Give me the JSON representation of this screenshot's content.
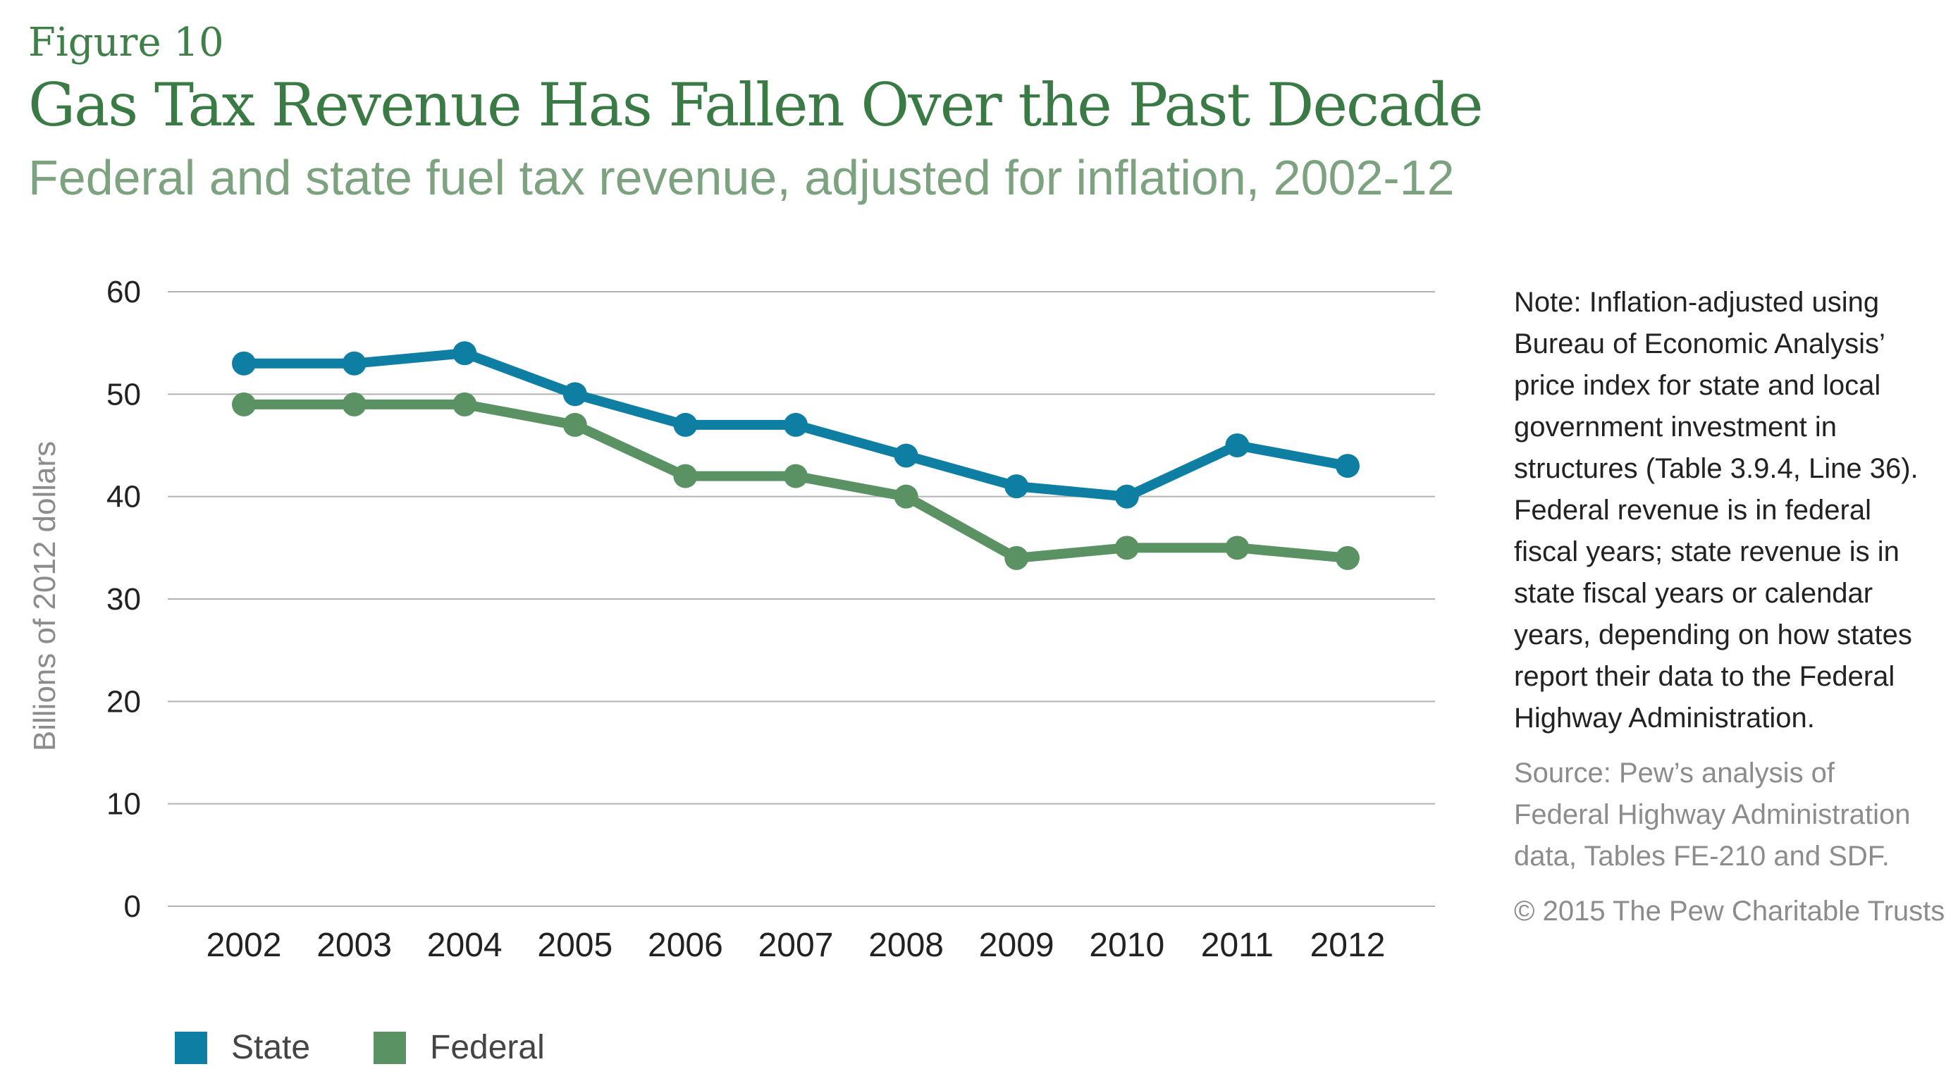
{
  "figure_label": "Figure 10",
  "colors": {
    "state": "#0e7fa3",
    "federal": "#5a9263",
    "grid": "#b3b3b3",
    "axis_text": "#222222",
    "ylabel": "#8c8c8c"
  },
  "notes": {
    "note": "Note: Inflation-adjusted using Bureau of Economic Analysis’ price index for state and local government investment in structures (Table 3.9.4, Line 36). Federal revenue is in federal fiscal years; state revenue is in state fiscal years or calendar years, depending on how states report their data to the Federal Highway Administration.",
    "source": "Source: Pew’s analysis of Federal Highway Administration data, Tables FE-210 and SDF.",
    "copyright": "© 2015 The Pew Charitable Trusts"
  },
  "chart_data": {
    "type": "line",
    "title": "Gas Tax Revenue Has Fallen Over the Past Decade",
    "subtitle": "Federal and state fuel tax revenue, adjusted for inflation, 2002-12",
    "xlabel": "",
    "ylabel": "Billions of 2012 dollars",
    "x": [
      "2002",
      "2003",
      "2004",
      "2005",
      "2006",
      "2007",
      "2008",
      "2009",
      "2010",
      "2011",
      "2012"
    ],
    "ylim": [
      0,
      60
    ],
    "yticks": [
      0,
      10,
      20,
      30,
      40,
      50,
      60
    ],
    "grid": true,
    "legend": "bottom-left",
    "series": [
      {
        "name": "State",
        "values": [
          53,
          53,
          54,
          50,
          47,
          47,
          44,
          41,
          40,
          45,
          43
        ]
      },
      {
        "name": "Federal",
        "values": [
          49,
          49,
          49,
          47,
          42,
          42,
          40,
          34,
          35,
          35,
          34
        ]
      }
    ]
  }
}
